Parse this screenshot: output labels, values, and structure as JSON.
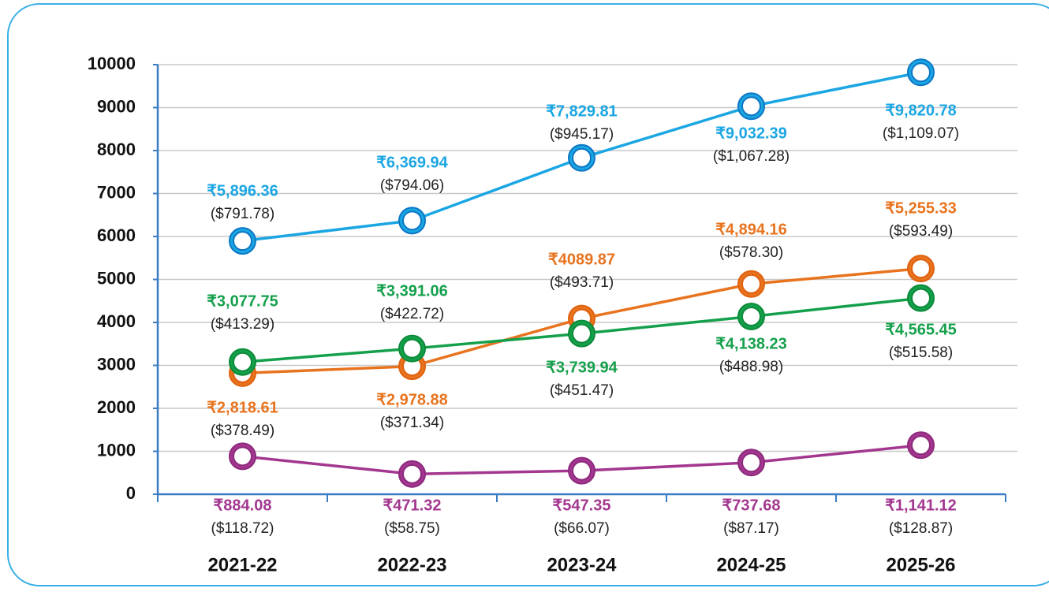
{
  "chart_data": {
    "type": "line",
    "categories": [
      "2021-22",
      "2022-23",
      "2023-24",
      "2024-25",
      "2025-26"
    ],
    "ylim": [
      0,
      10000
    ],
    "yticks": [
      0,
      1000,
      2000,
      3000,
      4000,
      5000,
      6000,
      7000,
      8000,
      9000,
      10000
    ],
    "grid": true,
    "series": [
      {
        "color": "#1ba6e3",
        "values": [
          5896.36,
          6369.94,
          7829.81,
          9032.39,
          9820.78
        ],
        "value_labels": [
          "₹5,896.36",
          "₹6,369.94",
          "₹7,829.81",
          "₹9,032.39",
          "₹9,820.78"
        ],
        "usd_labels": [
          "($791.78)",
          "($794.06)",
          "($945.17)",
          "($1,067.28)",
          "($1,109.07)"
        ]
      },
      {
        "color": "#e8731e",
        "values": [
          2818.61,
          2978.88,
          4089.87,
          4894.16,
          5255.33
        ],
        "value_labels": [
          "₹2,818.61",
          "₹2,978.88",
          "₹4089.87",
          "₹4,894.16",
          "₹5,255.33"
        ],
        "usd_labels": [
          "($378.49)",
          "($371.34)",
          "($493.71)",
          "($578.30)",
          "($593.49)"
        ]
      },
      {
        "color": "#14a04b",
        "values": [
          3077.75,
          3391.06,
          3739.94,
          4138.23,
          4565.45
        ],
        "value_labels": [
          "₹3,077.75",
          "₹3,391.06",
          "₹3,739.94",
          "₹4,138.23",
          "₹4,565.45"
        ],
        "usd_labels": [
          "($413.29)",
          "($422.72)",
          "($451.47)",
          "($488.98)",
          "($515.58)"
        ]
      },
      {
        "color": "#a3378f",
        "values": [
          884.08,
          471.32,
          547.35,
          737.68,
          1141.12
        ],
        "value_labels": [
          "₹884.08",
          "₹471.32",
          "₹547.35",
          "₹737.68",
          "₹1,141.12"
        ],
        "usd_labels": [
          "($118.72)",
          "($58.75)",
          "($66.07)",
          "($87.17)",
          "($128.87)"
        ]
      }
    ]
  }
}
